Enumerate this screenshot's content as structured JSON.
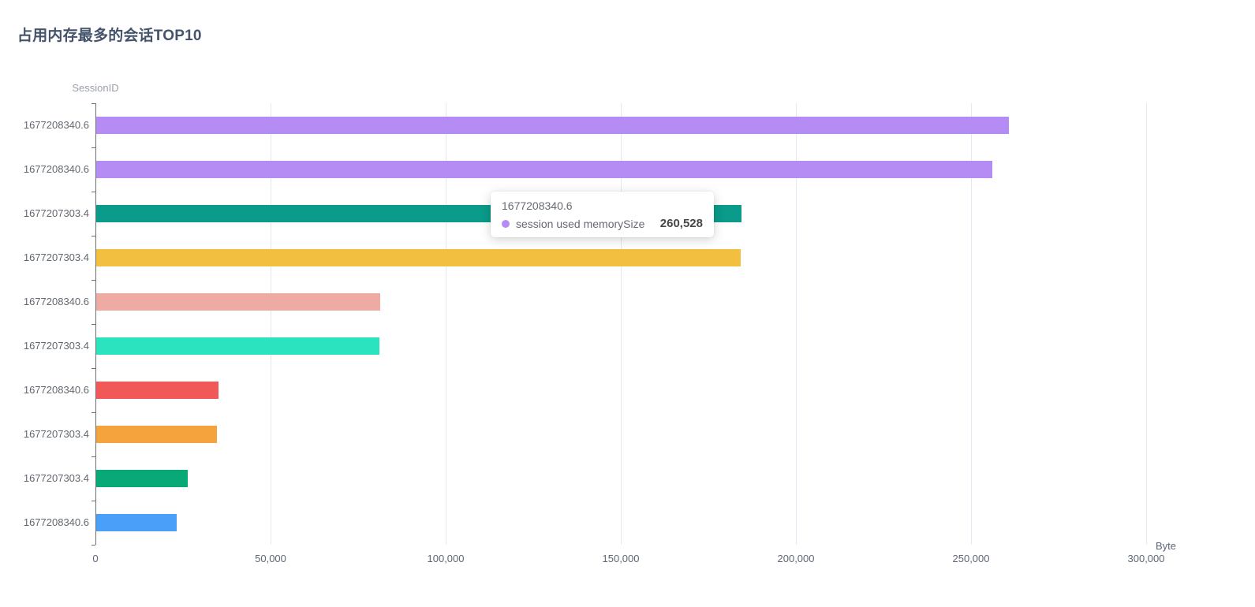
{
  "title": "占用内存最多的会话TOP10",
  "chart_data": {
    "type": "bar",
    "orientation": "horizontal",
    "title": "占用内存最多的会话TOP10",
    "y_axis_name": "SessionID",
    "x_axis_name": "Byte",
    "series_name": "session used memorySize",
    "categories": [
      "1677208340.6",
      "1677208340.6",
      "1677207303.4",
      "1677207303.4",
      "1677208340.6",
      "1677207303.4",
      "1677208340.6",
      "1677207303.4",
      "1677207303.4",
      "1677208340.6"
    ],
    "values": [
      260528,
      255800,
      184200,
      184000,
      81100,
      80900,
      34900,
      34460,
      26130,
      22970
    ],
    "bar_colors": [
      "#b48cf4",
      "#b48cf4",
      "#0a9b8a",
      "#f2bf41",
      "#eeaba3",
      "#2be3be",
      "#f15858",
      "#f5a43d",
      "#09a877",
      "#4aa0f8"
    ],
    "xlim": [
      0,
      300000
    ],
    "x_tick_values": [
      0,
      50000,
      100000,
      150000,
      200000,
      250000,
      300000
    ],
    "x_tick_labels": [
      "0",
      "50,000",
      "100,000",
      "150,000",
      "200,000",
      "250,000",
      "300,000"
    ],
    "grid": true,
    "legend": false
  },
  "tooltip": {
    "title": "1677208340.6",
    "series_label": "session used memorySize",
    "value": "260,528",
    "marker_color": "#b48cf4"
  }
}
